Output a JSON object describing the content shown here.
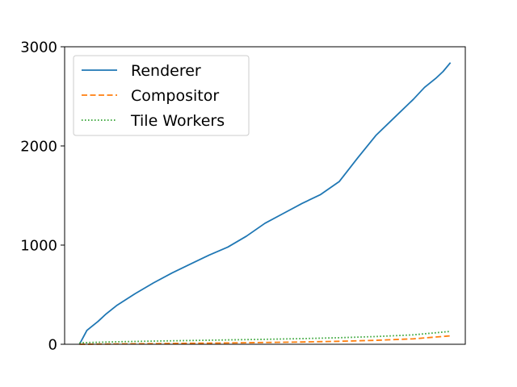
{
  "chart_data": {
    "type": "line",
    "title": "",
    "xlabel": "",
    "ylabel": "",
    "xlim": [
      -0.04,
      1.04
    ],
    "ylim": [
      0,
      3000
    ],
    "yticks": [
      0,
      1000,
      2000,
      3000
    ],
    "ytick_labels": [
      "0",
      "1000",
      "2000",
      "3000"
    ],
    "xticks": [],
    "grid": false,
    "legend": "top-left",
    "series": [
      {
        "name": "Renderer",
        "color": "#1f77b4",
        "style": "solid",
        "x": [
          0.0,
          0.01,
          0.02,
          0.03,
          0.05,
          0.07,
          0.1,
          0.15,
          0.2,
          0.25,
          0.3,
          0.35,
          0.4,
          0.45,
          0.5,
          0.55,
          0.6,
          0.65,
          0.7,
          0.75,
          0.8,
          0.85,
          0.9,
          0.93,
          0.96,
          0.98,
          1.0
        ],
        "y": [
          0,
          70,
          140,
          170,
          230,
          300,
          390,
          510,
          620,
          720,
          810,
          900,
          980,
          1090,
          1220,
          1320,
          1420,
          1510,
          1640,
          1880,
          2110,
          2290,
          2470,
          2590,
          2680,
          2750,
          2840
        ]
      },
      {
        "name": "Compositor",
        "color": "#ff7f0e",
        "style": "dashed",
        "x": [
          0.0,
          0.1,
          0.2,
          0.3,
          0.4,
          0.5,
          0.6,
          0.7,
          0.8,
          0.9,
          1.0
        ],
        "y": [
          0,
          3,
          6,
          10,
          13,
          18,
          23,
          30,
          40,
          55,
          85
        ]
      },
      {
        "name": "Tile Workers",
        "color": "#2ca02c",
        "style": "dotted",
        "x": [
          0.0,
          0.1,
          0.2,
          0.3,
          0.4,
          0.5,
          0.6,
          0.7,
          0.8,
          0.9,
          1.0
        ],
        "y": [
          15,
          25,
          32,
          38,
          44,
          50,
          57,
          66,
          78,
          95,
          130
        ]
      }
    ]
  }
}
